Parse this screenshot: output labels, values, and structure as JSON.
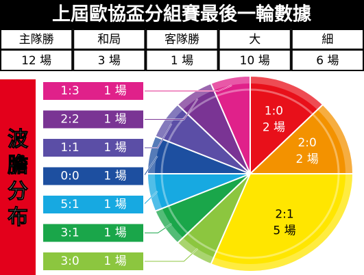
{
  "header": {
    "title": "上屆歐協盃分組賽最後一輪數據"
  },
  "table": {
    "columns": [
      "主隊勝",
      "和局",
      "客隊勝",
      "大",
      "細"
    ],
    "rows": [
      [
        "12 場",
        "3 場",
        "1 場",
        "10 場",
        "6 場"
      ]
    ]
  },
  "chart_data": {
    "type": "pie",
    "title": "波膽分布",
    "categories": [
      "1:0",
      "2:0",
      "2:1",
      "3:0",
      "3:1",
      "5:1",
      "0:0",
      "1:1",
      "2:2",
      "1:3"
    ],
    "values": [
      2,
      2,
      5,
      1,
      1,
      1,
      1,
      1,
      1,
      1
    ],
    "value_labels": [
      "2 場",
      "2 場",
      "5 場",
      "1 場",
      "1 場",
      "1 場",
      "1 場",
      "1 場",
      "1 場",
      "1 場"
    ],
    "colors": [
      "#e8101a",
      "#f39200",
      "#ffe600",
      "#8cc63f",
      "#1aa64a",
      "#17a9e1",
      "#1d4fa0",
      "#5b4ea6",
      "#7a3494",
      "#e0218a"
    ]
  }
}
